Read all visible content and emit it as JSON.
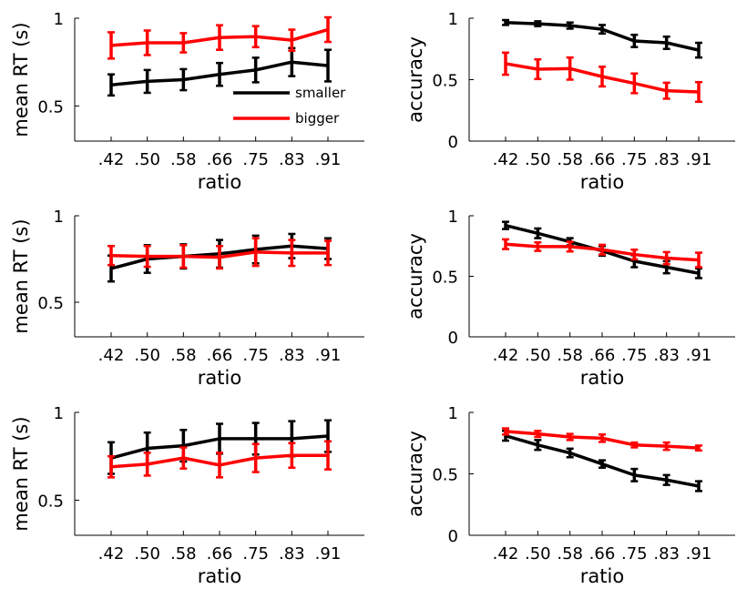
{
  "colors": {
    "smaller": "#000000",
    "bigger": "#ff0000"
  },
  "legend": {
    "smaller": "smaller",
    "bigger": "bigger"
  },
  "chart_data": [
    {
      "type": "line",
      "xlabel": "ratio",
      "ylabel": "mean RT (s)",
      "categories": [
        ".42",
        ".50",
        ".58",
        ".66",
        ".75",
        ".83",
        ".91"
      ],
      "ylim": [
        0.3,
        1.0
      ],
      "yticks": [
        0.5,
        1
      ],
      "ytick_labels": [
        "0.5",
        "1"
      ],
      "legend": "inside right",
      "series": [
        {
          "name": "smaller",
          "values": [
            0.62,
            0.64,
            0.65,
            0.68,
            0.705,
            0.75,
            0.73
          ],
          "errors": [
            0.06,
            0.065,
            0.06,
            0.065,
            0.07,
            0.08,
            0.09
          ]
        },
        {
          "name": "bigger",
          "values": [
            0.845,
            0.86,
            0.86,
            0.89,
            0.895,
            0.875,
            0.935
          ],
          "errors": [
            0.075,
            0.07,
            0.055,
            0.07,
            0.06,
            0.06,
            0.07
          ]
        }
      ]
    },
    {
      "type": "line",
      "xlabel": "ratio",
      "ylabel": "accuracy",
      "categories": [
        ".42",
        ".50",
        ".58",
        ".66",
        ".75",
        ".83",
        ".91"
      ],
      "ylim": [
        0,
        1
      ],
      "yticks": [
        0,
        0.5,
        1
      ],
      "ytick_labels": [
        "0",
        "0.5",
        "1"
      ],
      "series": [
        {
          "name": "smaller",
          "values": [
            0.965,
            0.955,
            0.94,
            0.91,
            0.815,
            0.8,
            0.74
          ],
          "errors": [
            0.02,
            0.02,
            0.025,
            0.035,
            0.05,
            0.05,
            0.06
          ]
        },
        {
          "name": "bigger",
          "values": [
            0.63,
            0.585,
            0.59,
            0.525,
            0.47,
            0.41,
            0.4
          ],
          "errors": [
            0.09,
            0.08,
            0.09,
            0.08,
            0.08,
            0.065,
            0.08
          ]
        }
      ]
    },
    {
      "type": "line",
      "xlabel": "ratio",
      "ylabel": "mean RT (s)",
      "categories": [
        ".42",
        ".50",
        ".58",
        ".66",
        ".75",
        ".83",
        ".91"
      ],
      "ylim": [
        0.3,
        1.0
      ],
      "yticks": [
        0.5,
        1
      ],
      "ytick_labels": [
        "0.5",
        "1"
      ],
      "series": [
        {
          "name": "smaller",
          "values": [
            0.695,
            0.75,
            0.765,
            0.78,
            0.805,
            0.825,
            0.81
          ],
          "errors": [
            0.075,
            0.08,
            0.07,
            0.08,
            0.08,
            0.07,
            0.06
          ]
        },
        {
          "name": "bigger",
          "values": [
            0.77,
            0.765,
            0.765,
            0.76,
            0.79,
            0.785,
            0.785
          ],
          "errors": [
            0.055,
            0.06,
            0.065,
            0.065,
            0.08,
            0.075,
            0.07
          ]
        }
      ]
    },
    {
      "type": "line",
      "xlabel": "ratio",
      "ylabel": "accuracy",
      "categories": [
        ".42",
        ".50",
        ".58",
        ".66",
        ".75",
        ".83",
        ".91"
      ],
      "ylim": [
        0,
        1
      ],
      "yticks": [
        0,
        0.5,
        1
      ],
      "ytick_labels": [
        "0",
        "0.5",
        "1"
      ],
      "series": [
        {
          "name": "smaller",
          "values": [
            0.92,
            0.855,
            0.785,
            0.71,
            0.625,
            0.575,
            0.525
          ],
          "errors": [
            0.03,
            0.04,
            0.03,
            0.04,
            0.05,
            0.05,
            0.04
          ]
        },
        {
          "name": "bigger",
          "values": [
            0.765,
            0.745,
            0.745,
            0.72,
            0.68,
            0.65,
            0.635
          ],
          "errors": [
            0.04,
            0.035,
            0.04,
            0.04,
            0.04,
            0.05,
            0.06
          ]
        }
      ]
    },
    {
      "type": "line",
      "xlabel": "ratio",
      "ylabel": "mean RT (s)",
      "categories": [
        ".42",
        ".50",
        ".58",
        ".66",
        ".75",
        ".83",
        ".91"
      ],
      "ylim": [
        0.3,
        1.0
      ],
      "yticks": [
        0.5,
        1
      ],
      "ytick_labels": [
        "0.5",
        "1"
      ],
      "series": [
        {
          "name": "smaller",
          "values": [
            0.74,
            0.795,
            0.81,
            0.85,
            0.85,
            0.85,
            0.865
          ],
          "errors": [
            0.09,
            0.09,
            0.09,
            0.085,
            0.09,
            0.1,
            0.09
          ]
        },
        {
          "name": "bigger",
          "values": [
            0.69,
            0.705,
            0.74,
            0.7,
            0.74,
            0.755,
            0.755
          ],
          "errors": [
            0.06,
            0.065,
            0.06,
            0.07,
            0.08,
            0.07,
            0.08
          ]
        }
      ]
    },
    {
      "type": "line",
      "xlabel": "ratio",
      "ylabel": "accuracy",
      "categories": [
        ".42",
        ".50",
        ".58",
        ".66",
        ".75",
        ".83",
        ".91"
      ],
      "ylim": [
        0,
        1
      ],
      "yticks": [
        0,
        0.5,
        1
      ],
      "ytick_labels": [
        "0",
        "0.5",
        "1"
      ],
      "series": [
        {
          "name": "smaller",
          "values": [
            0.81,
            0.735,
            0.67,
            0.58,
            0.49,
            0.45,
            0.4
          ],
          "errors": [
            0.04,
            0.04,
            0.035,
            0.03,
            0.05,
            0.04,
            0.04
          ]
        },
        {
          "name": "bigger",
          "values": [
            0.845,
            0.825,
            0.8,
            0.79,
            0.735,
            0.725,
            0.71
          ],
          "errors": [
            0.025,
            0.025,
            0.025,
            0.03,
            0.02,
            0.03,
            0.02
          ]
        }
      ]
    }
  ]
}
